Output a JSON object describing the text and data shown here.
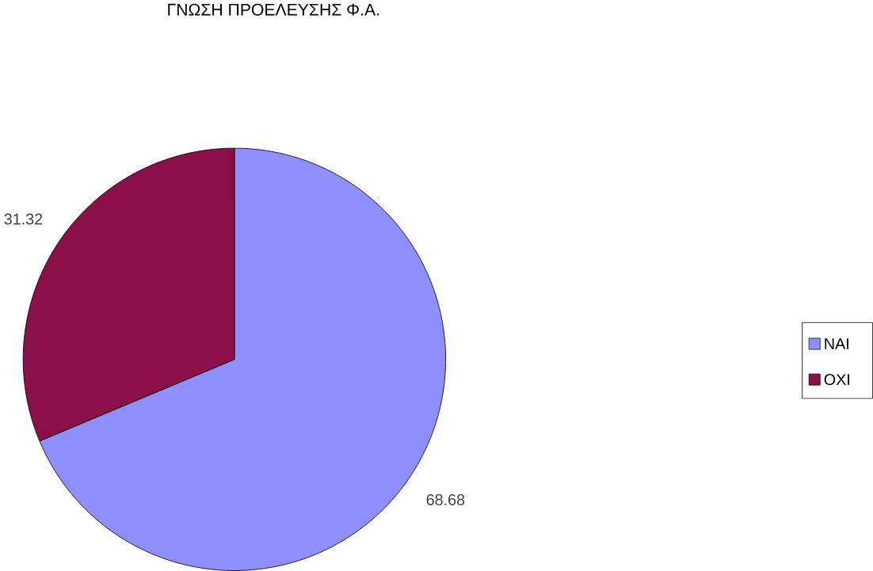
{
  "chart_data": {
    "type": "pie",
    "title": "ΓΝΩΣΗ ΠΡΟΕΛΕΥΣΗΣ Φ.Α.",
    "categories": [
      "ΝΑΙ",
      "ΟΧΙ"
    ],
    "values": [
      68.68,
      31.32
    ],
    "colors": [
      "#8f8fff",
      "#8b104a"
    ],
    "data_labels": true,
    "legend": "right"
  }
}
